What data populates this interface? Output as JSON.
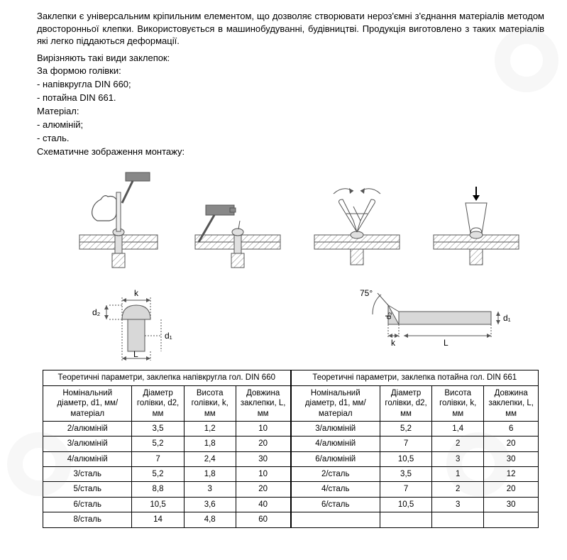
{
  "text": {
    "intro": "Заклепки є універсальним кріпильним елементом, що дозволяє створювати нероз'ємні з'єднання матеріалів методом двосторонньої клепки. Використовується в машинобудуванні, будівництві. Продукція виготовлено з таких матеріалів які легко піддаються деформації.",
    "types_title": "Вирізняють такі види заклепок:",
    "shape_title": "За формою голівки:",
    "shape1": "- напівкругла DIN 660;",
    "shape2": "- потайна DIN 661.",
    "material_title": "Матеріал:",
    "material1": "- алюміній;",
    "material2": "- сталь.",
    "schema_title": "Схематичне зображення монтажу:"
  },
  "schematic_labels": {
    "k": "k",
    "d1": "d₁",
    "d2": "d₂",
    "L": "L",
    "angle": "75°"
  },
  "table_left": {
    "title": "Теоретичні параметри, заклепка напівкругла гол. DIN 660",
    "headers": [
      "Номінальний діаметр, d1, мм/ матеріал",
      "Діаметр голівки, d2, мм",
      "Висота голівки, k, мм",
      "Довжина заклепки, L, мм"
    ],
    "rows": [
      [
        "2/алюміній",
        "3,5",
        "1,2",
        "10"
      ],
      [
        "3/алюміній",
        "5,2",
        "1,8",
        "20"
      ],
      [
        "4/алюміній",
        "7",
        "2,4",
        "30"
      ],
      [
        "3/сталь",
        "5,2",
        "1,8",
        "10"
      ],
      [
        "5/сталь",
        "8,8",
        "3",
        "20"
      ],
      [
        "6/сталь",
        "10,5",
        "3,6",
        "40"
      ],
      [
        "8/сталь",
        "14",
        "4,8",
        "60"
      ]
    ],
    "col_widths": [
      "36%",
      "21%",
      "21%",
      "22%"
    ]
  },
  "table_right": {
    "title": "Теоретичні параметри, заклепка потайна гол. DIN 661",
    "headers": [
      "Номінальний діаметр, d1, мм/ матеріал",
      "Діаметр голівки, d2, мм",
      "Висота голівки, k, мм",
      "Довжина заклепки, L, мм"
    ],
    "rows": [
      [
        "3/алюміній",
        "5,2",
        "1,4",
        "6"
      ],
      [
        "4/алюміній",
        "7",
        "2",
        "20"
      ],
      [
        "6/алюміній",
        "10,5",
        "3",
        "30"
      ],
      [
        "2/сталь",
        "3,5",
        "1",
        "12"
      ],
      [
        "4/сталь",
        "7",
        "2",
        "20"
      ],
      [
        "6/сталь",
        "10,5",
        "3",
        "30"
      ]
    ],
    "col_widths": [
      "36%",
      "21%",
      "21%",
      "22%"
    ]
  },
  "styling": {
    "body_bg": "#ffffff",
    "text_color": "#000000",
    "font_family": "Arial",
    "intro_fontsize": 13,
    "table_fontsize": 11.5,
    "border_color": "#000000",
    "svg_stroke": "#555555",
    "svg_fill": "#e8e8e8",
    "hatch_color": "#888888"
  }
}
